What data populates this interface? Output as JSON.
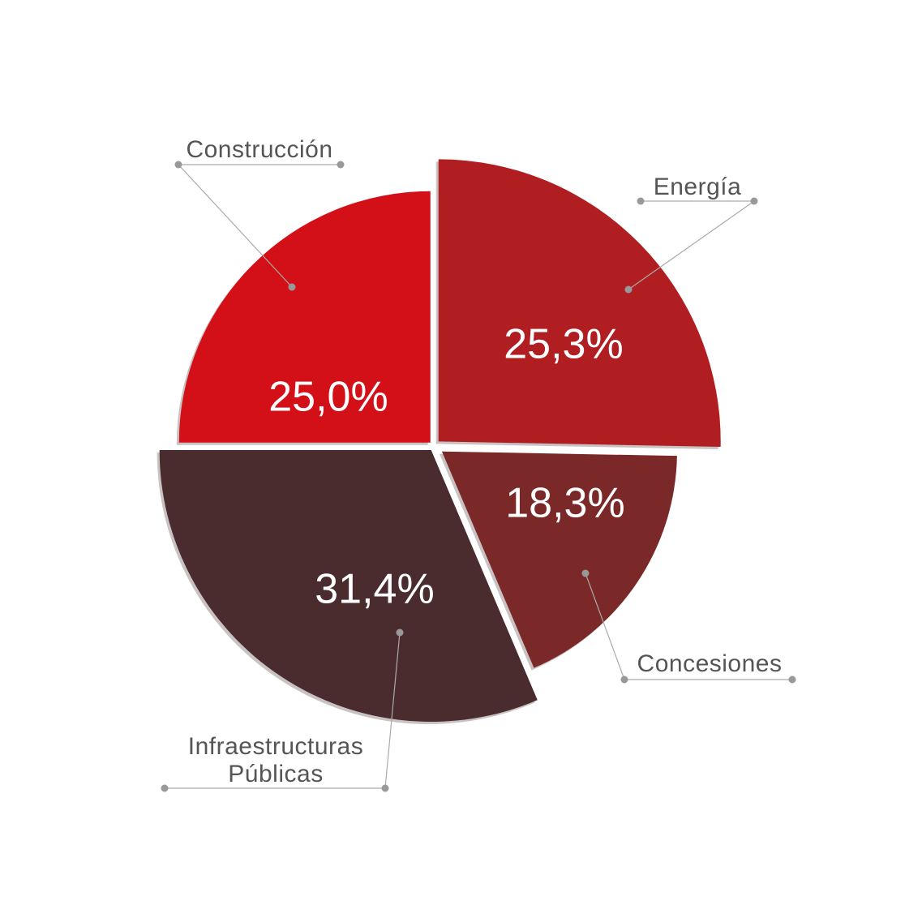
{
  "chart_data": {
    "type": "pie",
    "categories": [
      "Energía",
      "Concesiones",
      "Infraestructuras Públicas",
      "Construcción"
    ],
    "values": [
      25.3,
      18.3,
      31.4,
      25.0
    ],
    "value_labels": [
      "25,3%",
      "18,3%",
      "31,4%",
      "25,0%"
    ],
    "colors": [
      "#b01e22",
      "#7a2828",
      "#4a2c2f",
      "#d31018"
    ]
  }
}
